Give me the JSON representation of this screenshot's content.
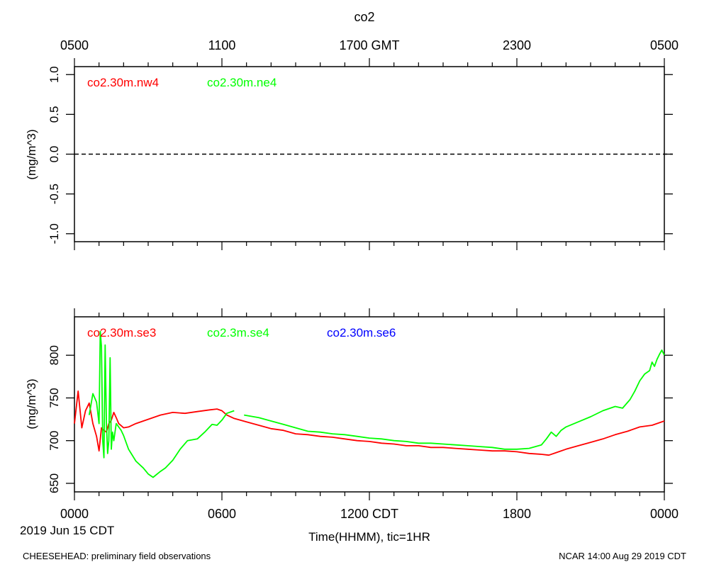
{
  "page": {
    "title": "co2",
    "footer_left": "CHEESEHEAD: preliminary field observations",
    "footer_right": "NCAR 14:00 Aug 29 2019 CDT"
  },
  "chart_data": [
    {
      "type": "line",
      "name": "upper-panel",
      "ylabel": "(mg/m^3)",
      "ylim": [
        -1.1,
        1.1
      ],
      "yticks": [
        -1.0,
        -0.5,
        0.0,
        0.5,
        1.0
      ],
      "ytick_labels": [
        "-1.0",
        "-0.5",
        "0.0",
        "0.5",
        "1.0"
      ],
      "xlim": [
        0,
        24
      ],
      "top_axis": {
        "label_hours": [
          0,
          6,
          12,
          18,
          24
        ],
        "tick_labels": [
          "0500",
          "1100",
          "1700 GMT",
          "2300",
          "0500"
        ]
      },
      "zero_line": 0,
      "series": [
        {
          "name": "co2.30m.nw4",
          "color": "#ff0000",
          "x": [],
          "y": []
        },
        {
          "name": "co2.30m.ne4",
          "color": "#00ff00",
          "x": [],
          "y": []
        }
      ]
    },
    {
      "type": "line",
      "name": "lower-panel",
      "ylabel": "(mg/m^3)",
      "ylim": [
        640,
        845
      ],
      "yticks": [
        650,
        700,
        750,
        800
      ],
      "ytick_labels": [
        "650",
        "700",
        "750",
        "800"
      ],
      "xlim": [
        0,
        24
      ],
      "bottom_axis": {
        "label_hours": [
          0,
          6,
          12,
          18,
          24
        ],
        "tick_labels": [
          "0000",
          "0600",
          "1200 CDT",
          "1800",
          "0000"
        ],
        "date_label": "2019 Jun 15 CDT",
        "xlabel": "Time(HHMM), tic=1HR"
      },
      "series": [
        {
          "name": "co2.30m.se3",
          "color": "#ff0000",
          "x": [
            0,
            0.15,
            0.3,
            0.45,
            0.6,
            0.75,
            0.9,
            1.0,
            1.1,
            1.2,
            1.3,
            1.4,
            1.5,
            1.6,
            1.7,
            1.8,
            2.0,
            2.2,
            2.5,
            3.0,
            3.5,
            4.0,
            4.5,
            5.0,
            5.5,
            5.8,
            6.0,
            6.2,
            6.5,
            7.0,
            7.5,
            8.0,
            8.5,
            9.0,
            9.5,
            10.0,
            10.5,
            11.0,
            11.5,
            12.0,
            12.5,
            13.0,
            13.5,
            14.0,
            14.5,
            15.0,
            15.5,
            16.0,
            16.5,
            17.0,
            17.5,
            18.0,
            18.5,
            19.0,
            19.3,
            19.6,
            20.0,
            20.5,
            21.0,
            21.5,
            22.0,
            22.5,
            23.0,
            23.5,
            24.0
          ],
          "y": [
            720,
            758,
            715,
            735,
            744,
            720,
            705,
            688,
            715,
            712,
            710,
            720,
            724,
            733,
            727,
            720,
            715,
            716,
            720,
            725,
            730,
            733,
            732,
            734,
            736,
            737,
            735,
            730,
            726,
            722,
            718,
            714,
            712,
            708,
            707,
            705,
            704,
            702,
            700,
            699,
            697,
            696,
            694,
            694,
            692,
            692,
            691,
            690,
            689,
            688,
            688,
            687,
            685,
            684,
            683,
            686,
            690,
            694,
            698,
            702,
            707,
            711,
            716,
            718,
            723
          ]
        },
        {
          "name": "co2.3m.se4",
          "color": "#00ff00",
          "x": [
            0.6,
            0.75,
            0.9,
            1.0,
            1.05,
            1.1,
            1.15,
            1.2,
            1.25,
            1.3,
            1.35,
            1.4,
            1.45,
            1.5,
            1.55,
            1.6,
            1.7,
            1.8,
            1.9,
            2.0,
            2.2,
            2.5,
            2.8,
            3.0,
            3.2,
            3.5,
            3.7,
            4.0,
            4.3,
            4.6,
            5.0,
            5.3,
            5.6,
            5.8,
            6.0,
            6.2,
            6.5
          ],
          "y": [
            730,
            755,
            745,
            720,
            828,
            810,
            700,
            680,
            812,
            720,
            685,
            700,
            797,
            690,
            710,
            700,
            720,
            716,
            712,
            706,
            690,
            676,
            668,
            661,
            657,
            664,
            668,
            677,
            690,
            700,
            702,
            710,
            719,
            718,
            724,
            732,
            735
          ],
          "x2": [
            6.9,
            7.5,
            8.0,
            8.5,
            9.0,
            9.5,
            10.0,
            10.5,
            11.0,
            11.5,
            12.0,
            12.5,
            13.0,
            13.5,
            14.0,
            14.5,
            15.0,
            15.5,
            16.0,
            16.5,
            17.0,
            17.5,
            18.0,
            18.5,
            19.0,
            19.2,
            19.4,
            19.6,
            19.8,
            20.0,
            20.5,
            21.0,
            21.5,
            22.0,
            22.3,
            22.6,
            22.8,
            23.0,
            23.2,
            23.4,
            23.5,
            23.6,
            23.7,
            23.8,
            23.9,
            24.0
          ],
          "y2": [
            730,
            727,
            723,
            719,
            715,
            711,
            710,
            708,
            707,
            705,
            703,
            702,
            700,
            699,
            697,
            697,
            696,
            695,
            694,
            693,
            692,
            690,
            690,
            691,
            695,
            702,
            710,
            705,
            712,
            716,
            722,
            728,
            735,
            740,
            738,
            748,
            758,
            770,
            778,
            782,
            792,
            787,
            795,
            801,
            806,
            800
          ]
        },
        {
          "name": "co2.30m.se6",
          "color": "#0000ff",
          "x": [],
          "y": []
        }
      ]
    }
  ]
}
